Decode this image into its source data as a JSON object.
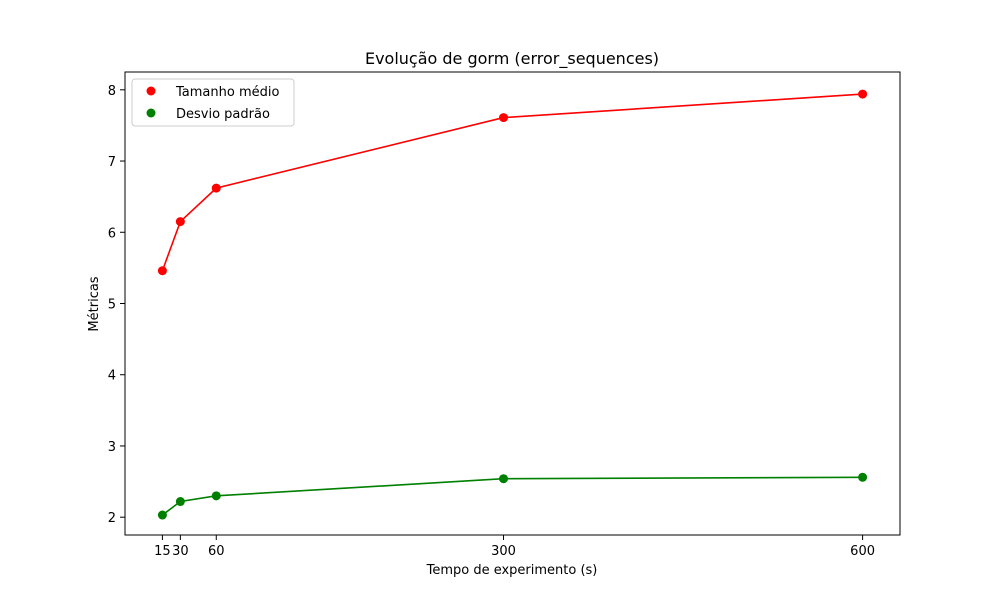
{
  "chart_data": {
    "type": "line",
    "title": "Evolução de gorm (error_sequences)",
    "xlabel": "Tempo de experimento (s)",
    "ylabel": "Métricas",
    "x": [
      15,
      30,
      60,
      300,
      600
    ],
    "xticks": [
      15,
      30,
      60,
      300,
      600
    ],
    "yticks": [
      2,
      3,
      4,
      5,
      6,
      7,
      8
    ],
    "xlim": [
      -16.25,
      631.25
    ],
    "ylim": [
      1.75,
      8.25
    ],
    "grid": false,
    "legend_position": "top-left",
    "series": [
      {
        "name": "Tamanho médio",
        "color": "#ff0000",
        "values": [
          5.46,
          6.15,
          6.62,
          7.61,
          7.94
        ]
      },
      {
        "name": "Desvio padrão",
        "color": "#008000",
        "values": [
          2.03,
          2.22,
          2.3,
          2.54,
          2.56
        ]
      }
    ]
  }
}
